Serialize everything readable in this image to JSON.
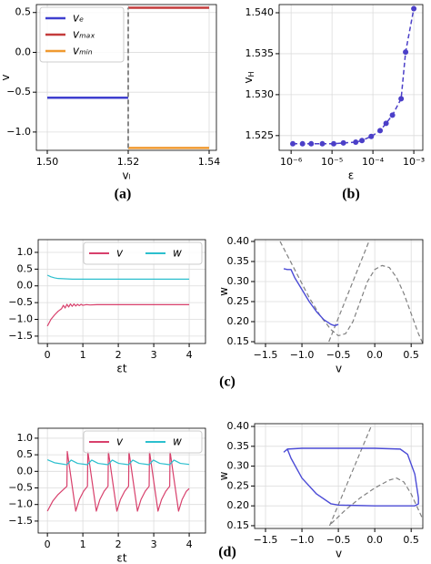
{
  "captions": [
    "(a)",
    "(b)",
    "(c)",
    "(d)"
  ],
  "chart_data": [
    {
      "type": "line",
      "xlabel": "vₗ",
      "ylabel": "v",
      "grid": true,
      "legend": "upper left",
      "legend_ncol": 1,
      "xlim": [
        1.4973,
        1.5418
      ],
      "ylim": [
        -1.23,
        0.6
      ],
      "xticks": [
        {
          "value": 1.5,
          "label": "1.50"
        },
        1.52,
        1.54
      ],
      "yticks": [
        {
          "value": -1,
          "label": "−1.0"
        },
        {
          "value": -0.5,
          "label": "−0.5"
        },
        {
          "value": 0,
          "label": "0.0"
        },
        0.5
      ],
      "series": [
        {
          "name": "vₑ",
          "color": "#3f3fcf",
          "width": 2.5,
          "x": [
            1.5,
            1.52
          ],
          "values": [
            -0.57,
            -0.57
          ]
        },
        {
          "name": "vₘₐₓ",
          "color": "#c43c3c",
          "width": 2.5,
          "x": [
            1.52,
            1.54
          ],
          "values": [
            0.56,
            0.56
          ]
        },
        {
          "name": "vₘᵢₙ",
          "color": "#f09a30",
          "width": 2.5,
          "x": [
            1.52,
            1.54
          ],
          "values": [
            -1.2,
            -1.2
          ]
        },
        {
          "color": "#888888",
          "width": 2,
          "dash": true,
          "x": [
            1.52,
            1.52
          ],
          "values": [
            -1.2,
            0.56
          ]
        }
      ]
    },
    {
      "type": "line",
      "xlabel": "ε",
      "ylabel": "v",
      "ylabel_sub": "H",
      "grid": true,
      "xscale": "log",
      "xlim": [
        5.1e-07,
        0.00166
      ],
      "ylim": [
        1.5232,
        1.541
      ],
      "xticks": [
        {
          "value": 1e-06,
          "label": "10⁻⁶"
        },
        {
          "value": 1e-05,
          "label": "10⁻⁵"
        },
        {
          "value": 0.0001,
          "label": "10⁻⁴"
        },
        {
          "value": 0.001,
          "label": "10⁻³"
        }
      ],
      "yticks": [
        1.525,
        {
          "value": 1.53,
          "label": "1.530"
        },
        1.535,
        {
          "value": 1.54,
          "label": "1.540"
        }
      ],
      "series": [
        {
          "color": "#4b3fc8",
          "width": 1.5,
          "dash": true,
          "marker": true,
          "x": [
            1.1e-06,
            1.9e-06,
            3.1e-06,
            5.8e-06,
            1.1e-05,
            1.9e-05,
            3.8e-05,
            5.4e-05,
            9.1e-05,
            0.00015,
            0.00021,
            0.0003,
            0.00049,
            0.00063,
            0.001
          ],
          "values": [
            1.524,
            1.524,
            1.524,
            1.524,
            1.524,
            1.5241,
            1.5242,
            1.5244,
            1.5249,
            1.5256,
            1.5265,
            1.5275,
            1.5295,
            1.5352,
            1.5405
          ]
        }
      ]
    },
    {
      "type": "line",
      "xlabel": "εt",
      "grid": true,
      "legend": "upper right",
      "legend_ncol": 2,
      "xlim": [
        -0.26,
        4.46
      ],
      "ylim": [
        -1.72,
        1.38
      ],
      "xticks": [
        0,
        1,
        2,
        3,
        4
      ],
      "yticks": [
        {
          "value": -1.5,
          "label": "−1.5"
        },
        {
          "value": -1,
          "label": "−1.0"
        },
        {
          "value": -0.5,
          "label": "−0.5"
        },
        {
          "value": 0,
          "label": "0.0"
        },
        0.5,
        {
          "value": 1,
          "label": "1.0"
        }
      ],
      "series": [
        {
          "name": "v",
          "color": "#d8406c",
          "width": 1.2,
          "x": [
            0,
            0.1,
            0.2,
            0.3,
            0.4,
            0.45,
            0.5,
            0.55,
            0.6,
            0.65,
            0.7,
            0.75,
            0.8,
            0.85,
            0.9,
            0.95,
            1,
            1.1,
            1.2,
            1.4,
            2,
            3,
            4
          ],
          "values": [
            -1.2,
            -1,
            -0.87,
            -0.76,
            -0.68,
            -0.58,
            -0.66,
            -0.55,
            -0.63,
            -0.54,
            -0.61,
            -0.54,
            -0.6,
            -0.55,
            -0.59,
            -0.55,
            -0.58,
            -0.56,
            -0.57,
            -0.56,
            -0.56,
            -0.56,
            -0.56
          ]
        },
        {
          "name": "w",
          "color": "#2cbfce",
          "width": 1.2,
          "x": [
            0,
            0.1,
            0.2,
            0.3,
            0.5,
            0.7,
            1,
            2,
            4
          ],
          "values": [
            0.32,
            0.27,
            0.24,
            0.22,
            0.21,
            0.2,
            0.2,
            0.2,
            0.2
          ]
        }
      ]
    },
    {
      "type": "line",
      "xlabel": "v",
      "ylabel": "w",
      "grid": true,
      "xlim": [
        -1.65,
        0.66
      ],
      "ylim": [
        0.1455,
        0.4045
      ],
      "xticks": [
        {
          "value": -1.5,
          "label": "−1.5"
        },
        {
          "value": -1,
          "label": "−1.0"
        },
        {
          "value": -0.5,
          "label": "−0.5"
        },
        {
          "value": 0,
          "label": "0.0"
        },
        0.5
      ],
      "yticks": [
        0.15,
        {
          "value": 0.2,
          "label": "0.20"
        },
        0.25,
        {
          "value": 0.3,
          "label": "0.30"
        },
        0.35,
        {
          "value": 0.4,
          "label": "0.40"
        }
      ],
      "series": [
        {
          "color": "#808080",
          "width": 1.2,
          "dash": true,
          "x": [
            -1.3,
            -1.1,
            -0.9,
            -0.75,
            -0.6,
            -0.5,
            -0.4,
            -0.3,
            -0.2,
            -0.1,
            0,
            0.1,
            0.2,
            0.3,
            0.4,
            0.5,
            0.6,
            0.7
          ],
          "values": [
            0.4,
            0.33,
            0.26,
            0.215,
            0.18,
            0.165,
            0.17,
            0.2,
            0.25,
            0.3,
            0.33,
            0.34,
            0.335,
            0.31,
            0.27,
            0.22,
            0.17,
            0.13
          ]
        },
        {
          "color": "#808080",
          "width": 1.2,
          "dash": true,
          "x": [
            -0.63,
            -0.08
          ],
          "values": [
            0.15,
            0.4
          ]
        },
        {
          "color": "#4b4bd6",
          "width": 1.4,
          "x": [
            -1.25,
            -1.2,
            -1.15,
            -1.1,
            -1,
            -0.9,
            -0.8,
            -0.7,
            -0.6,
            -0.55,
            -0.5
          ],
          "values": [
            0.332,
            0.33,
            0.33,
            0.31,
            0.28,
            0.25,
            0.225,
            0.205,
            0.193,
            0.19,
            0.193
          ]
        }
      ]
    },
    {
      "type": "line",
      "xlabel": "εt",
      "grid": true,
      "legend": "upper right",
      "legend_ncol": 2,
      "xlim": [
        -0.26,
        4.46
      ],
      "ylim": [
        -1.86,
        1.3
      ],
      "xticks": [
        0,
        1,
        2,
        3,
        4
      ],
      "yticks": [
        {
          "value": -1.5,
          "label": "−1.5"
        },
        {
          "value": -1,
          "label": "−1.0"
        },
        {
          "value": -0.5,
          "label": "−0.5"
        },
        {
          "value": 0,
          "label": "0.0"
        },
        0.5,
        {
          "value": 1,
          "label": "1.0"
        }
      ],
      "series": [
        {
          "name": "v",
          "color": "#d8406c",
          "width": 1.2,
          "x": [
            0,
            0.15,
            0.3,
            0.45,
            0.55,
            0.56,
            0.68,
            0.8,
            0.9,
            1.02,
            1.13,
            1.14,
            1.26,
            1.38,
            1.48,
            1.6,
            1.71,
            1.72,
            1.84,
            1.96,
            2.06,
            2.18,
            2.29,
            2.3,
            2.42,
            2.54,
            2.64,
            2.76,
            2.87,
            2.88,
            3,
            3.12,
            3.22,
            3.34,
            3.45,
            3.46,
            3.58,
            3.7,
            3.8,
            3.92,
            4
          ],
          "values": [
            -1.2,
            -0.9,
            -0.7,
            -0.55,
            -0.45,
            0.6,
            -0.3,
            -1.2,
            -0.85,
            -0.6,
            -0.45,
            0.6,
            -0.3,
            -1.2,
            -0.85,
            -0.6,
            -0.45,
            0.6,
            -0.3,
            -1.2,
            -0.85,
            -0.6,
            -0.45,
            0.6,
            -0.3,
            -1.2,
            -0.85,
            -0.6,
            -0.45,
            0.6,
            -0.3,
            -1.2,
            -0.85,
            -0.6,
            -0.45,
            0.6,
            -0.3,
            -1.2,
            -0.85,
            -0.6,
            -0.52
          ]
        },
        {
          "name": "w",
          "color": "#2cbfce",
          "width": 1.2,
          "x": [
            0,
            0.2,
            0.55,
            0.67,
            0.85,
            1.13,
            1.25,
            1.43,
            1.71,
            1.83,
            2.01,
            2.29,
            2.41,
            2.59,
            2.87,
            2.99,
            3.17,
            3.45,
            3.57,
            3.75,
            4
          ],
          "values": [
            0.35,
            0.26,
            0.2,
            0.34,
            0.24,
            0.2,
            0.34,
            0.24,
            0.2,
            0.34,
            0.24,
            0.2,
            0.34,
            0.24,
            0.2,
            0.34,
            0.24,
            0.2,
            0.34,
            0.24,
            0.21
          ]
        }
      ]
    },
    {
      "type": "line",
      "xlabel": "v",
      "ylabel": "w",
      "grid": true,
      "xlim": [
        -1.65,
        0.66
      ],
      "ylim": [
        0.143,
        0.407
      ],
      "xticks": [
        {
          "value": -1.5,
          "label": "−1.5"
        },
        {
          "value": -1,
          "label": "−1.0"
        },
        {
          "value": -0.5,
          "label": "−0.5"
        },
        {
          "value": 0,
          "label": "0.0"
        },
        0.5
      ],
      "yticks": [
        0.15,
        {
          "value": 0.2,
          "label": "0.20"
        },
        0.25,
        {
          "value": 0.3,
          "label": "0.30"
        },
        0.35,
        {
          "value": 0.4,
          "label": "0.40"
        }
      ],
      "series": [
        {
          "color": "#808080",
          "width": 1.2,
          "dash": true,
          "x": [
            -0.6,
            -0.4,
            -0.2,
            0,
            0.2,
            0.3,
            0.4,
            0.5,
            0.6,
            0.7
          ],
          "values": [
            0.155,
            0.19,
            0.22,
            0.245,
            0.265,
            0.27,
            0.26,
            0.23,
            0.19,
            0.15
          ]
        },
        {
          "color": "#808080",
          "width": 1.2,
          "dash": true,
          "x": [
            -0.62,
            -0.05
          ],
          "values": [
            0.15,
            0.4
          ]
        },
        {
          "color": "#4b4bd6",
          "width": 1.4,
          "x": [
            -1.25,
            -1.2,
            -1,
            -0.5,
            0,
            0.35,
            0.45,
            0.55,
            0.6,
            0.6,
            0.55,
            0.3,
            0,
            -0.5,
            -0.6,
            -0.8,
            -1,
            -1.15,
            -1.2
          ],
          "values": [
            0.335,
            0.343,
            0.345,
            0.345,
            0.345,
            0.343,
            0.33,
            0.28,
            0.22,
            0.205,
            0.2,
            0.2,
            0.2,
            0.202,
            0.205,
            0.23,
            0.27,
            0.32,
            0.343
          ]
        }
      ]
    }
  ]
}
